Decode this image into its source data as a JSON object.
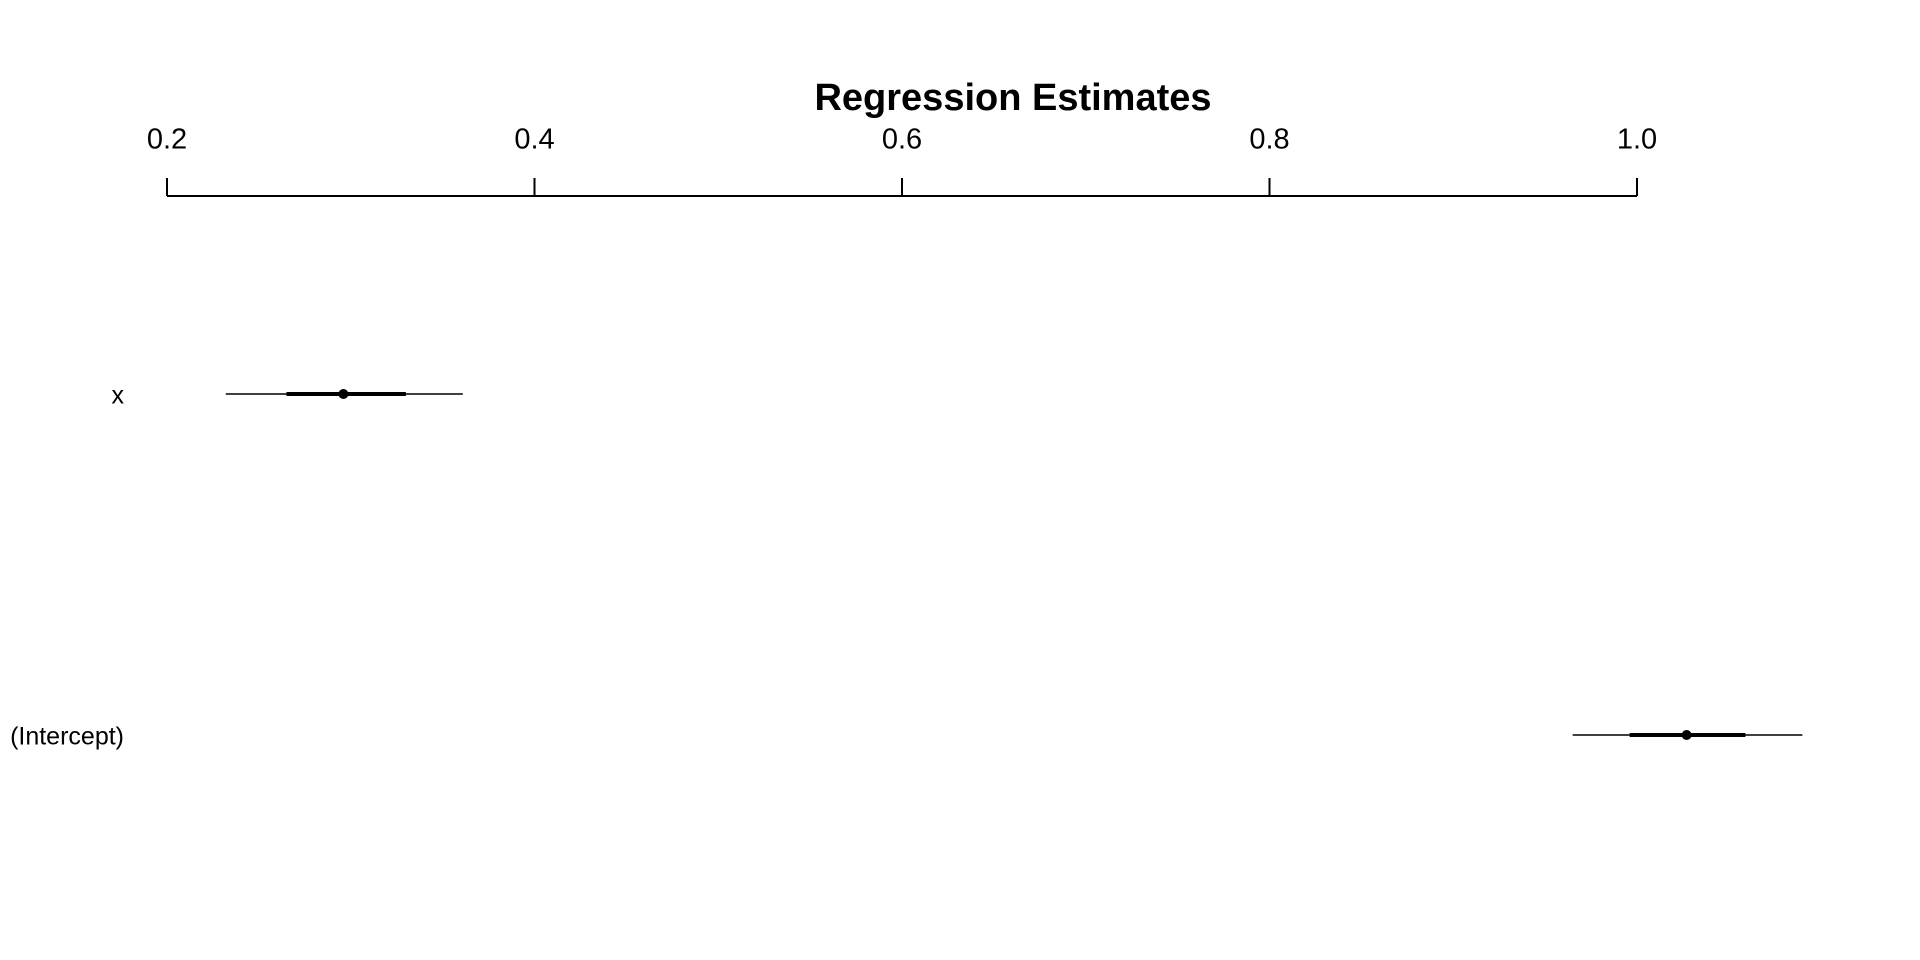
{
  "chart_data": {
    "type": "coefplot",
    "title": "Regression Estimates",
    "categories": [
      "x",
      "(Intercept)"
    ],
    "values": [
      0.296,
      1.027
    ],
    "inner_lower": [
      0.265,
      0.996
    ],
    "inner_upper": [
      0.33,
      1.059
    ],
    "outer_lower": [
      0.232,
      0.965
    ],
    "outer_upper": [
      0.361,
      1.09
    ],
    "color": "#000000",
    "xlim": [
      0.2,
      1
    ],
    "xticks": [
      0.2,
      0.4,
      0.6,
      0.8,
      {
        "value": 1,
        "label": "1.0"
      }
    ]
  }
}
